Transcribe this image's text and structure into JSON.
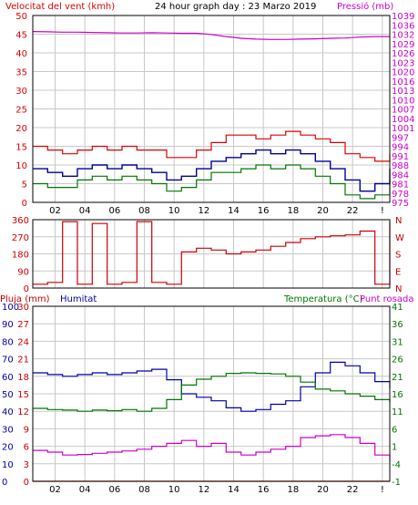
{
  "header": {
    "wind_title": "Velocitat del vent (kmh)",
    "graph_title": "24 hour graph day : 23 Marzo 2019",
    "pressure_title": "Pressió (mb)"
  },
  "lower_header": {
    "rain_title": "Pluja (mm)",
    "humidity_title": "Humitat",
    "temp_title": "Temperatura (°C)",
    "dew_title": "Punt rosada"
  },
  "colors": {
    "wind_max": "#dd0000",
    "wind_avg": "#000099",
    "wind_min": "#007700",
    "pressure": "#cc00cc",
    "direction": "#cc0000",
    "rain": "#cc0000",
    "humidity": "#0000aa",
    "temperature": "#007700",
    "dew": "#cc00cc",
    "grid": "#c8c8c8",
    "frame": "#000000"
  },
  "chart_data": [
    {
      "type": "line",
      "name": "wind-pressure-panel",
      "x_ticks": [
        "02",
        "04",
        "06",
        "08",
        "10",
        "12",
        "14",
        "16",
        "18",
        "20",
        "22",
        "!"
      ],
      "y_left_ticks": [
        "50",
        "45",
        "40",
        "35",
        "30",
        "25",
        "20",
        "15",
        "10",
        "5",
        "0"
      ],
      "y_right_ticks": [
        "1039",
        "1036",
        "1032",
        "1029",
        "1026",
        "1023",
        "1020",
        "1016",
        "1013",
        "1010",
        "1007",
        "1004",
        "1001",
        "997",
        "994",
        "991",
        "988",
        "984",
        "981",
        "978",
        "975"
      ],
      "ylim_left": [
        0,
        50
      ],
      "ylim_right": [
        975,
        1039
      ],
      "hours": [
        0,
        1,
        2,
        3,
        4,
        5,
        6,
        7,
        8,
        9,
        10,
        11,
        12,
        13,
        14,
        15,
        16,
        17,
        18,
        19,
        20,
        21,
        22,
        23,
        24
      ],
      "series": [
        {
          "key": "wind_max",
          "values": [
            15,
            14,
            13,
            14,
            15,
            14,
            15,
            14,
            14,
            12,
            12,
            14,
            16,
            18,
            18,
            17,
            18,
            19,
            18,
            17,
            16,
            13,
            12,
            11,
            13
          ]
        },
        {
          "key": "wind_avg",
          "values": [
            9,
            8,
            7,
            9,
            10,
            9,
            10,
            9,
            8,
            6,
            7,
            9,
            11,
            12,
            13,
            14,
            13,
            14,
            13,
            11,
            9,
            6,
            3,
            5,
            9
          ]
        },
        {
          "key": "wind_min",
          "values": [
            5,
            4,
            4,
            6,
            7,
            6,
            7,
            6,
            5,
            3,
            4,
            6,
            8,
            8,
            9,
            10,
            9,
            10,
            9,
            7,
            5,
            2,
            1,
            2,
            6
          ]
        },
        {
          "key": "pressure",
          "values": [
            1033.5,
            1033.4,
            1033.3,
            1033.3,
            1033.2,
            1033.1,
            1033.0,
            1033.0,
            1033.1,
            1033.0,
            1032.9,
            1032.9,
            1032.5,
            1031.8,
            1031.2,
            1030.9,
            1030.8,
            1030.8,
            1030.9,
            1031.0,
            1031.2,
            1031.3,
            1031.6,
            1031.8,
            1031.8
          ]
        }
      ]
    },
    {
      "type": "line",
      "name": "wind-direction-panel",
      "y_ticks": [
        "360",
        "270",
        "180",
        "90",
        "0"
      ],
      "y_right_labels": [
        "N",
        "W",
        "S",
        "E",
        "N"
      ],
      "ylim": [
        0,
        360
      ],
      "hours": [
        0,
        1,
        2,
        3,
        4,
        5,
        6,
        7,
        8,
        9,
        10,
        11,
        12,
        13,
        14,
        15,
        16,
        17,
        18,
        19,
        20,
        21,
        22,
        23,
        24
      ],
      "values": [
        20,
        30,
        350,
        20,
        340,
        20,
        30,
        350,
        30,
        20,
        190,
        210,
        200,
        180,
        190,
        200,
        220,
        240,
        260,
        270,
        275,
        280,
        300,
        20,
        350
      ]
    },
    {
      "type": "line",
      "name": "rain-humidity-temperature-panel",
      "y_rain_ticks": [
        "100",
        "90",
        "80",
        "70",
        "60",
        "50",
        "40",
        "30",
        "20",
        "10",
        "0"
      ],
      "y_humidity_ticks": [
        "30",
        "27",
        "24",
        "21",
        "18",
        "15",
        "12",
        "9",
        "6",
        "3",
        "0"
      ],
      "y_temp_ticks": [
        "41",
        "36",
        "31",
        "26",
        "21",
        "16",
        "11",
        "6",
        "1",
        "-4",
        "-1"
      ],
      "ylim_humidity": [
        0,
        100
      ],
      "ylim_temperature": [
        0,
        30
      ],
      "hours": [
        0,
        1,
        2,
        3,
        4,
        5,
        6,
        7,
        8,
        9,
        10,
        11,
        12,
        13,
        14,
        15,
        16,
        17,
        18,
        19,
        20,
        21,
        22,
        23,
        24
      ],
      "series": [
        {
          "key": "rain",
          "values": [
            0,
            0,
            0,
            0,
            0,
            0,
            0,
            0,
            0,
            0,
            0,
            0,
            0,
            0,
            0,
            0,
            0,
            0,
            0,
            0,
            0,
            0,
            0,
            0,
            0
          ]
        },
        {
          "key": "humidity",
          "values": [
            62,
            61,
            60,
            61,
            62,
            61,
            62,
            63,
            64,
            58,
            50,
            48,
            46,
            42,
            40,
            41,
            44,
            46,
            54,
            62,
            68,
            66,
            62,
            57,
            53
          ]
        },
        {
          "key": "temperature",
          "values": [
            12.5,
            12.3,
            12.2,
            12.0,
            12.2,
            12.1,
            12.3,
            12.0,
            12.5,
            14.0,
            16.5,
            17.5,
            18.0,
            18.5,
            18.6,
            18.5,
            18.4,
            18.0,
            17.0,
            15.8,
            15.5,
            15.0,
            14.6,
            14.0,
            13.5
          ]
        },
        {
          "key": "dew",
          "values": [
            5.3,
            5.0,
            4.5,
            4.6,
            4.8,
            5.0,
            5.2,
            5.5,
            6.0,
            6.5,
            7.0,
            6.0,
            6.5,
            5.0,
            4.5,
            5.0,
            5.5,
            6.0,
            7.5,
            7.8,
            8.0,
            7.5,
            6.5,
            4.5,
            3.5
          ]
        }
      ]
    }
  ]
}
